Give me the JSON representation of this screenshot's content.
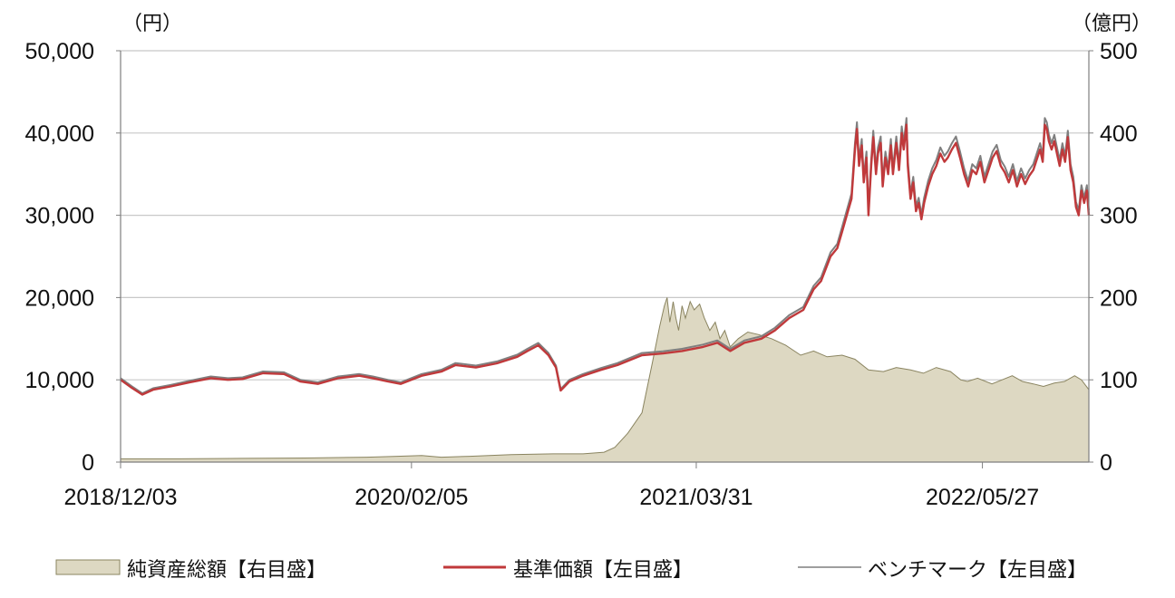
{
  "chart_data": {
    "type": "line",
    "left_axis_unit": "（円）",
    "right_axis_unit": "（億円）",
    "left_ylim": [
      0,
      50000
    ],
    "right_ylim": [
      0,
      500
    ],
    "left_ticks": [
      0,
      10000,
      20000,
      30000,
      40000,
      50000
    ],
    "left_tick_labels": [
      "0",
      "10,000",
      "20,000",
      "30,000",
      "40,000",
      "50,000"
    ],
    "right_ticks": [
      0,
      100,
      200,
      300,
      400,
      500
    ],
    "right_tick_labels": [
      "0",
      "100",
      "200",
      "300",
      "400",
      "500"
    ],
    "x_tick_labels": [
      "2018/12/03",
      "2020/02/05",
      "2021/03/31",
      "2022/05/27"
    ],
    "x_tick_dates": [
      "2018-12-03",
      "2020-02-05",
      "2021-03-31",
      "2022-05-27"
    ],
    "x_range": [
      "2018-12-03",
      "2022-10-31"
    ],
    "grid": "horizontal",
    "legend_position": "bottom",
    "colors": {
      "area_fill": "#ddd8c2",
      "area_edge": "#8a8460",
      "nav": "#c0393b",
      "benchmark": "#7f7f7f",
      "grid": "#c8c8c8"
    },
    "series": [
      {
        "name": "純資産総額【右目盛】",
        "axis": "right",
        "style": "area",
        "points": [
          [
            "2018-12-03",
            4
          ],
          [
            "2019-03-01",
            4
          ],
          [
            "2019-06-01",
            4.5
          ],
          [
            "2019-09-01",
            5
          ],
          [
            "2019-12-01",
            6
          ],
          [
            "2020-01-15",
            7
          ],
          [
            "2020-02-20",
            8
          ],
          [
            "2020-03-20",
            6
          ],
          [
            "2020-05-01",
            7
          ],
          [
            "2020-07-01",
            9
          ],
          [
            "2020-09-01",
            10
          ],
          [
            "2020-10-15",
            10
          ],
          [
            "2020-11-15",
            12
          ],
          [
            "2020-12-01",
            18
          ],
          [
            "2020-12-20",
            35
          ],
          [
            "2021-01-10",
            60
          ],
          [
            "2021-01-25",
            120
          ],
          [
            "2021-02-05",
            165
          ],
          [
            "2021-02-12",
            190
          ],
          [
            "2021-02-16",
            200
          ],
          [
            "2021-02-20",
            170
          ],
          [
            "2021-02-25",
            195
          ],
          [
            "2021-03-01",
            175
          ],
          [
            "2021-03-05",
            160
          ],
          [
            "2021-03-10",
            190
          ],
          [
            "2021-03-15",
            175
          ],
          [
            "2021-03-22",
            195
          ],
          [
            "2021-03-28",
            185
          ],
          [
            "2021-04-05",
            192
          ],
          [
            "2021-04-12",
            175
          ],
          [
            "2021-04-20",
            160
          ],
          [
            "2021-04-28",
            170
          ],
          [
            "2021-05-05",
            150
          ],
          [
            "2021-05-12",
            160
          ],
          [
            "2021-05-20",
            140
          ],
          [
            "2021-06-01",
            150
          ],
          [
            "2021-06-15",
            158
          ],
          [
            "2021-07-01",
            155
          ],
          [
            "2021-07-20",
            150
          ],
          [
            "2021-08-10",
            142
          ],
          [
            "2021-09-01",
            130
          ],
          [
            "2021-09-20",
            135
          ],
          [
            "2021-10-10",
            128
          ],
          [
            "2021-11-01",
            130
          ],
          [
            "2021-11-20",
            125
          ],
          [
            "2021-12-10",
            112
          ],
          [
            "2022-01-01",
            110
          ],
          [
            "2022-01-20",
            115
          ],
          [
            "2022-02-10",
            112
          ],
          [
            "2022-03-01",
            108
          ],
          [
            "2022-03-20",
            115
          ],
          [
            "2022-04-10",
            110
          ],
          [
            "2022-04-25",
            100
          ],
          [
            "2022-05-05",
            98
          ],
          [
            "2022-05-20",
            102
          ],
          [
            "2022-06-10",
            95
          ],
          [
            "2022-06-25",
            100
          ],
          [
            "2022-07-10",
            105
          ],
          [
            "2022-07-25",
            98
          ],
          [
            "2022-08-10",
            95
          ],
          [
            "2022-08-25",
            92
          ],
          [
            "2022-09-10",
            96
          ],
          [
            "2022-09-25",
            98
          ],
          [
            "2022-10-10",
            105
          ],
          [
            "2022-10-20",
            100
          ],
          [
            "2022-10-31",
            88
          ]
        ]
      },
      {
        "name": "基準価額【左目盛】",
        "axis": "left",
        "style": "line",
        "points": [
          [
            "2018-12-03",
            10000
          ],
          [
            "2018-12-20",
            9000
          ],
          [
            "2019-01-04",
            8200
          ],
          [
            "2019-01-20",
            8800
          ],
          [
            "2019-02-15",
            9200
          ],
          [
            "2019-03-15",
            9700
          ],
          [
            "2019-04-15",
            10200
          ],
          [
            "2019-05-10",
            10000
          ],
          [
            "2019-06-01",
            10100
          ],
          [
            "2019-07-01",
            10800
          ],
          [
            "2019-08-01",
            10700
          ],
          [
            "2019-08-25",
            9800
          ],
          [
            "2019-09-20",
            9500
          ],
          [
            "2019-10-20",
            10200
          ],
          [
            "2019-11-20",
            10500
          ],
          [
            "2019-12-10",
            10200
          ],
          [
            "2020-01-01",
            9800
          ],
          [
            "2020-01-20",
            9500
          ],
          [
            "2020-02-20",
            10500
          ],
          [
            "2020-03-20",
            11000
          ],
          [
            "2020-04-10",
            11800
          ],
          [
            "2020-05-10",
            11500
          ],
          [
            "2020-06-10",
            12000
          ],
          [
            "2020-07-10",
            12800
          ],
          [
            "2020-07-25",
            13500
          ],
          [
            "2020-08-10",
            14200
          ],
          [
            "2020-08-25",
            13000
          ],
          [
            "2020-09-05",
            11500
          ],
          [
            "2020-09-12",
            8700
          ],
          [
            "2020-09-25",
            9800
          ],
          [
            "2020-10-15",
            10500
          ],
          [
            "2020-11-10",
            11200
          ],
          [
            "2020-12-05",
            11800
          ],
          [
            "2021-01-10",
            13000
          ],
          [
            "2021-02-10",
            13200
          ],
          [
            "2021-03-10",
            13500
          ],
          [
            "2021-04-10",
            14000
          ],
          [
            "2021-05-01",
            14500
          ],
          [
            "2021-05-20",
            13500
          ],
          [
            "2021-06-10",
            14500
          ],
          [
            "2021-07-05",
            15000
          ],
          [
            "2021-07-25",
            16000
          ],
          [
            "2021-08-15",
            17500
          ],
          [
            "2021-09-05",
            18500
          ],
          [
            "2021-09-20",
            21000
          ],
          [
            "2021-10-01",
            22000
          ],
          [
            "2021-10-15",
            25000
          ],
          [
            "2021-10-25",
            26000
          ],
          [
            "2021-11-01",
            28000
          ],
          [
            "2021-11-08",
            30000
          ],
          [
            "2021-11-15",
            32000
          ],
          [
            "2021-11-20",
            38000
          ],
          [
            "2021-11-23",
            40500
          ],
          [
            "2021-11-26",
            36000
          ],
          [
            "2021-11-30",
            38500
          ],
          [
            "2021-12-03",
            34000
          ],
          [
            "2021-12-07",
            37000
          ],
          [
            "2021-12-10",
            30000
          ],
          [
            "2021-12-14",
            36000
          ],
          [
            "2021-12-17",
            39500
          ],
          [
            "2021-12-21",
            35000
          ],
          [
            "2021-12-24",
            37500
          ],
          [
            "2021-12-28",
            38800
          ],
          [
            "2021-12-31",
            33500
          ],
          [
            "2022-01-04",
            37000
          ],
          [
            "2022-01-08",
            35000
          ],
          [
            "2022-01-12",
            38500
          ],
          [
            "2022-01-15",
            35000
          ],
          [
            "2022-01-20",
            38800
          ],
          [
            "2022-01-24",
            35500
          ],
          [
            "2022-01-28",
            40000
          ],
          [
            "2022-01-31",
            38000
          ],
          [
            "2022-02-04",
            41000
          ],
          [
            "2022-02-06",
            36000
          ],
          [
            "2022-02-10",
            32000
          ],
          [
            "2022-02-14",
            34000
          ],
          [
            "2022-02-18",
            30500
          ],
          [
            "2022-02-22",
            31500
          ],
          [
            "2022-02-26",
            29500
          ],
          [
            "2022-03-02",
            31500
          ],
          [
            "2022-03-08",
            33500
          ],
          [
            "2022-03-14",
            35000
          ],
          [
            "2022-03-20",
            36000
          ],
          [
            "2022-03-26",
            37500
          ],
          [
            "2022-04-01",
            36500
          ],
          [
            "2022-04-06",
            37000
          ],
          [
            "2022-04-12",
            38000
          ],
          [
            "2022-04-18",
            38800
          ],
          [
            "2022-04-24",
            37000
          ],
          [
            "2022-04-30",
            35000
          ],
          [
            "2022-05-06",
            33500
          ],
          [
            "2022-05-12",
            35500
          ],
          [
            "2022-05-18",
            35000
          ],
          [
            "2022-05-24",
            36500
          ],
          [
            "2022-05-30",
            34000
          ],
          [
            "2022-06-05",
            35500
          ],
          [
            "2022-06-11",
            37000
          ],
          [
            "2022-06-17",
            37800
          ],
          [
            "2022-06-23",
            36000
          ],
          [
            "2022-06-29",
            35200
          ],
          [
            "2022-07-05",
            34000
          ],
          [
            "2022-07-11",
            35500
          ],
          [
            "2022-07-17",
            33500
          ],
          [
            "2022-07-23",
            35000
          ],
          [
            "2022-07-29",
            33800
          ],
          [
            "2022-08-04",
            34800
          ],
          [
            "2022-08-10",
            35500
          ],
          [
            "2022-08-16",
            37000
          ],
          [
            "2022-08-20",
            38000
          ],
          [
            "2022-08-24",
            36500
          ],
          [
            "2022-08-27",
            41000
          ],
          [
            "2022-08-30",
            40500
          ],
          [
            "2022-09-02",
            39000
          ],
          [
            "2022-09-06",
            38000
          ],
          [
            "2022-09-10",
            39000
          ],
          [
            "2022-09-14",
            37500
          ],
          [
            "2022-09-18",
            36000
          ],
          [
            "2022-09-22",
            38000
          ],
          [
            "2022-09-26",
            36500
          ],
          [
            "2022-09-30",
            39500
          ],
          [
            "2022-10-04",
            35500
          ],
          [
            "2022-10-08",
            34000
          ],
          [
            "2022-10-12",
            31000
          ],
          [
            "2022-10-16",
            30000
          ],
          [
            "2022-10-20",
            33000
          ],
          [
            "2022-10-24",
            31500
          ],
          [
            "2022-10-28",
            33000
          ],
          [
            "2022-10-31",
            30000
          ]
        ]
      },
      {
        "name": "ベンチマーク【左目盛】",
        "axis": "left",
        "style": "line",
        "points_note_ref": "nav"
      }
    ]
  },
  "legend": {
    "area_label": "純資産総額【右目盛】",
    "nav_label": "基準価額【左目盛】",
    "bench_label": "ベンチマーク【左目盛】"
  }
}
